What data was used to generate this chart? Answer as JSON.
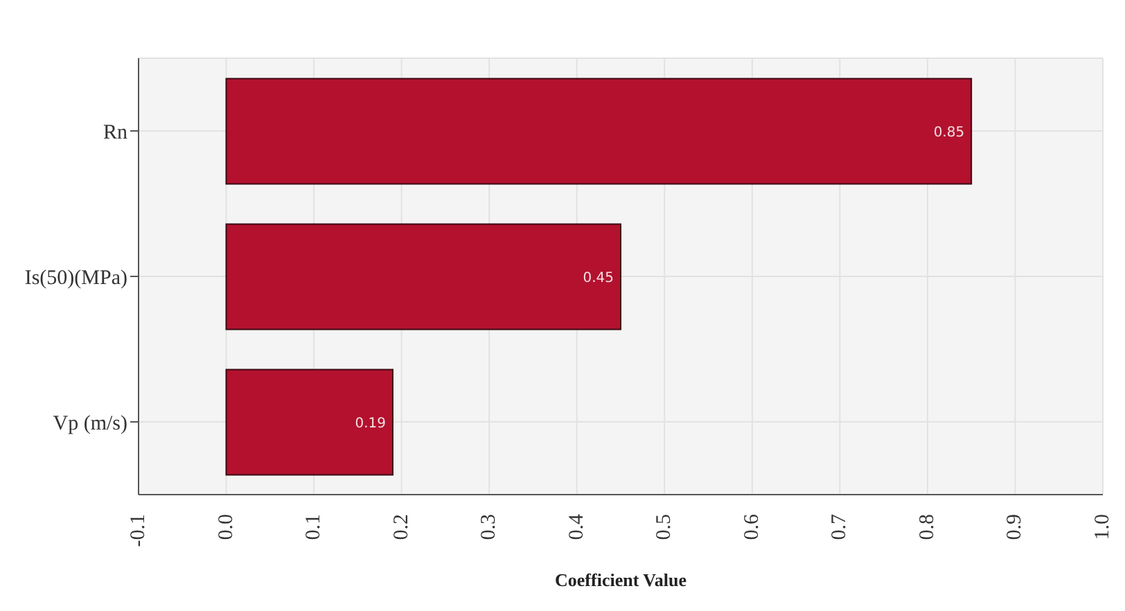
{
  "chart_data": {
    "type": "bar",
    "orientation": "horizontal",
    "xlabel": "Coefficient Value",
    "categories": [
      "Rn",
      "Is(50)(MPa)",
      "Vp (m/s)"
    ],
    "values": [
      0.85,
      0.45,
      0.19
    ],
    "color": "#b3112e",
    "data_labels": true,
    "xlim": [
      -0.1,
      1.0
    ],
    "xticks": [
      -0.1,
      {
        "value": 0,
        "label": "0.0"
      },
      0.1,
      0.2,
      0.3,
      0.4,
      0.5,
      0.6,
      0.7,
      0.8,
      0.9,
      {
        "value": 1,
        "label": "1.0"
      }
    ],
    "grid": true
  }
}
